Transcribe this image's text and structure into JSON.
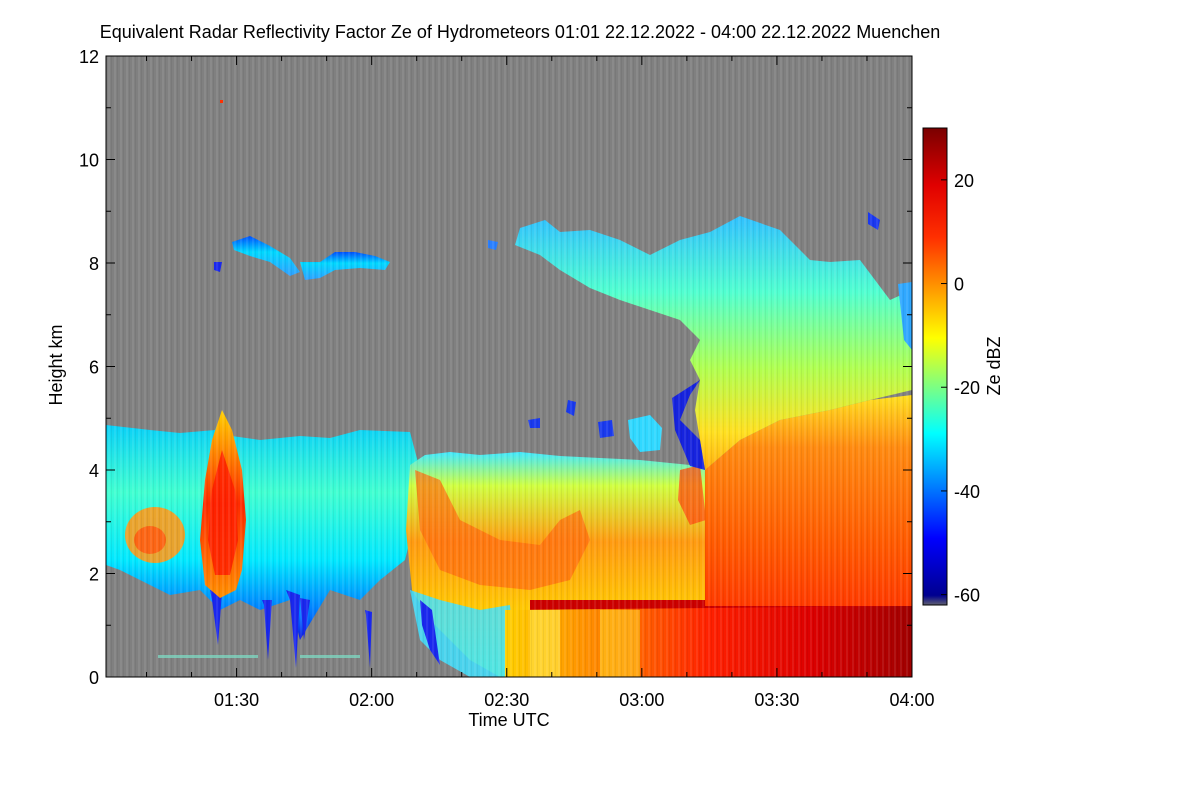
{
  "chart_data": {
    "type": "heatmap",
    "title": "Equivalent Radar Reflectivity Factor Ze of Hydrometeors   01:01 22.12.2022 - 04:00 22.12.2022 Muenchen",
    "xlabel": "Time UTC",
    "ylabel": "Height km",
    "x_range": [
      "01:01",
      "04:00"
    ],
    "x_ticks": [
      "01:30",
      "02:00",
      "02:30",
      "03:00",
      "03:30",
      "04:00"
    ],
    "y_range": [
      0,
      12
    ],
    "y_ticks": [
      "0",
      "2",
      "4",
      "6",
      "8",
      "10",
      "12"
    ],
    "colorbar": {
      "label": "Ze dBZ",
      "range": [
        -62,
        30
      ],
      "ticks": [
        "-60",
        "-40",
        "-20",
        "0",
        "20"
      ]
    },
    "no_signal_color": "#808080",
    "echo_regions": [
      {
        "time_start": "01:01",
        "time_end": "02:10",
        "height_bottom_km": 0.8,
        "height_top_km": 4.8,
        "ze_core_dbz": -22
      },
      {
        "time_start": "01:26",
        "time_end": "01:33",
        "height_bottom_km": 1.6,
        "height_top_km": 5.1,
        "ze_core_dbz": 12
      },
      {
        "time_start": "01:06",
        "time_end": "01:17",
        "height_bottom_km": 2.2,
        "height_top_km": 3.4,
        "ze_core_dbz": 2
      },
      {
        "time_start": "02:10",
        "time_end": "03:15",
        "height_bottom_km": 0.0,
        "height_top_km": 4.4,
        "ze_core_dbz": 5
      },
      {
        "time_start": "02:31",
        "time_end": "04:00",
        "height_bottom_km": 0.0,
        "height_top_km": 1.4,
        "ze_core_dbz": 18
      },
      {
        "time_start": "03:10",
        "time_end": "04:00",
        "height_bottom_km": 1.4,
        "height_top_km": 5.2,
        "ze_core_dbz": 12
      },
      {
        "time_start": "03:10",
        "time_end": "04:00",
        "height_bottom_km": 4.0,
        "height_top_km": 8.8,
        "ze_core_dbz": -10
      },
      {
        "time_start": "02:32",
        "time_end": "03:05",
        "height_bottom_km": 7.0,
        "height_top_km": 8.8,
        "ze_core_dbz": -25
      },
      {
        "time_start": "01:27",
        "time_end": "02:05",
        "height_bottom_km": 7.5,
        "height_top_km": 8.6,
        "ze_core_dbz": -30
      }
    ]
  }
}
